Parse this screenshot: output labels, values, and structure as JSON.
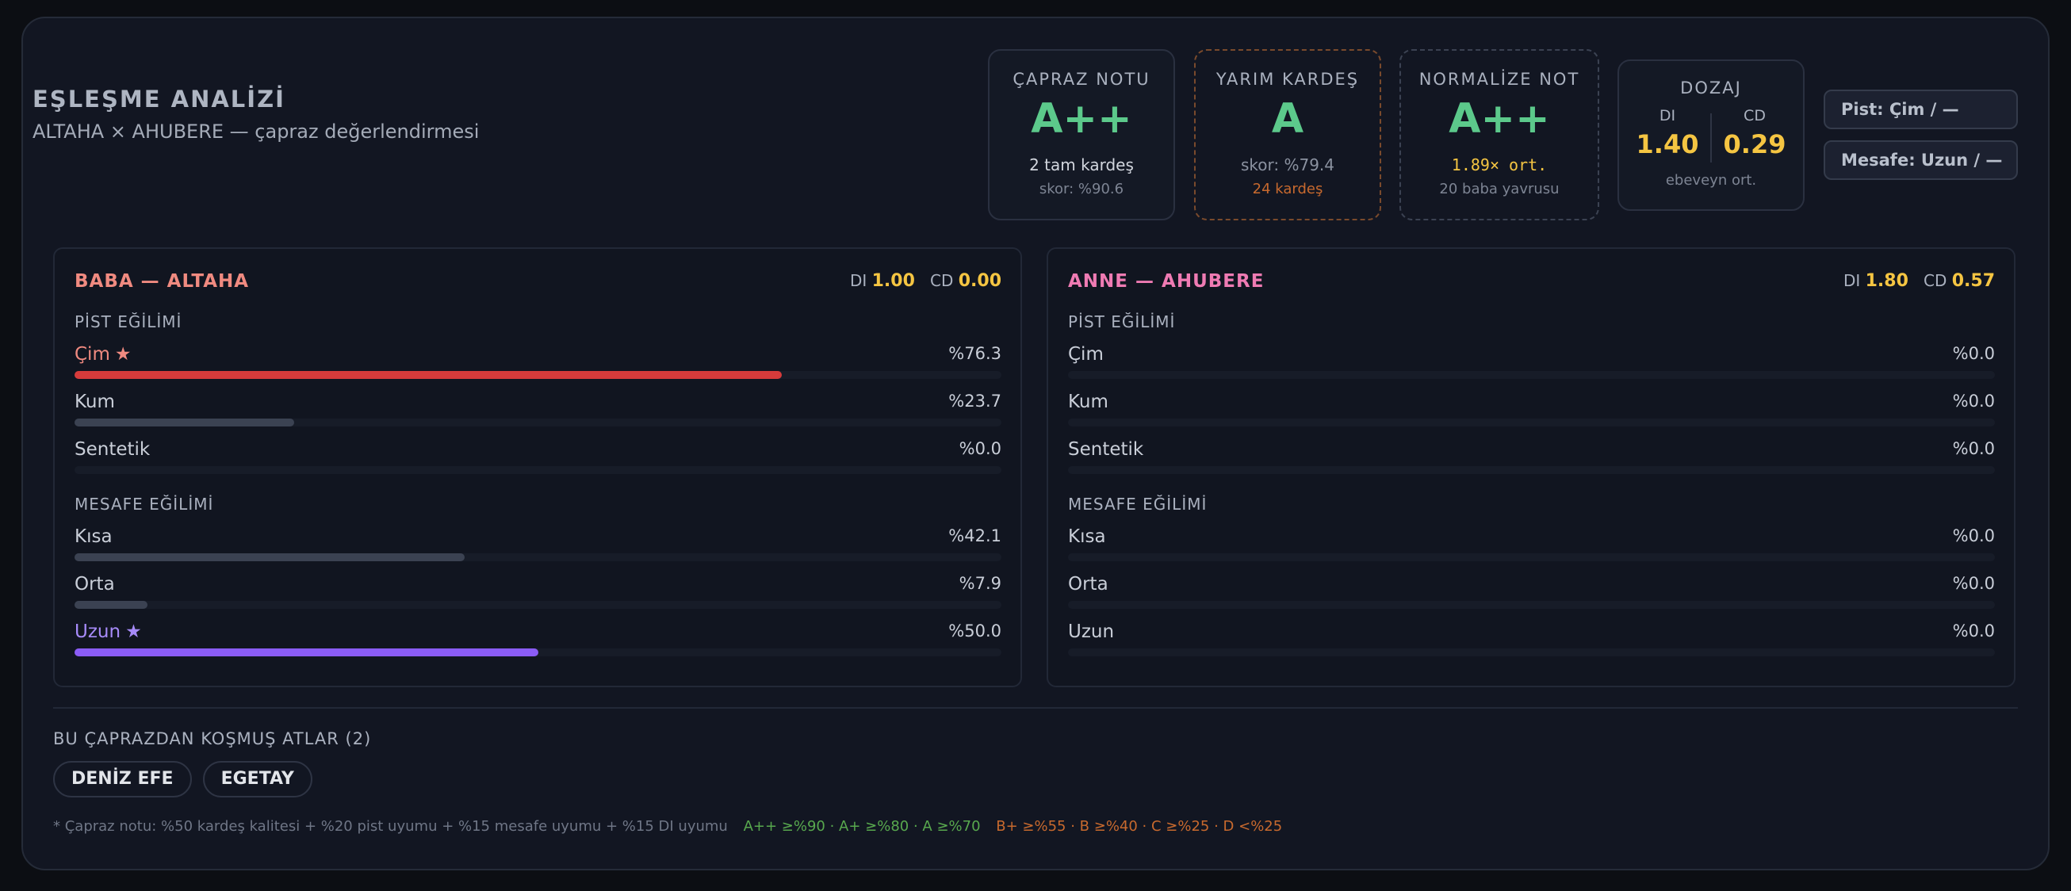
{
  "header": {
    "title": "EŞLEŞME ANALİZİ",
    "subtitle": "ALTAHA × AHUBERE — çapraz değerlendirmesi"
  },
  "stats": {
    "capraz": {
      "label": "ÇAPRAZ NOTU",
      "grade": "A++",
      "line1": "2 tam kardeş",
      "line2": "skor: %90.6"
    },
    "yarim": {
      "label": "YARIM KARDEŞ",
      "grade": "A",
      "line1": "skor: %79.4",
      "line2": "24 kardeş"
    },
    "normalize": {
      "label": "NORMALİZE NOT",
      "grade": "A++",
      "line1": "1.89× ort.",
      "line2": "20 baba yavrusu"
    },
    "dozaj": {
      "label": "DOZAJ",
      "di_label": "DI",
      "di_value": "1.40",
      "cd_label": "CD",
      "cd_value": "0.29",
      "footer": "ebeveyn ort."
    }
  },
  "chips": {
    "pist": "Pist: Çim / —",
    "mesafe": "Mesafe: Uzun / —"
  },
  "colors": {
    "grade_green": "#5cc98b",
    "accent_yellow": "#f5c542",
    "cim_bar": "#d63b3b",
    "uzun_bar": "#8b5cf6",
    "neutral_bar": "#3b4252"
  },
  "sire": {
    "title": "BABA — ALTAHA",
    "di_label": "DI",
    "di_value": "1.00",
    "cd_label": "CD",
    "cd_value": "0.00",
    "surface_title": "PİST EĞİLİMİ",
    "surface": [
      {
        "name": "Çim",
        "star": "★",
        "pct": "%76.3",
        "value": 76.3,
        "highlight": "cim"
      },
      {
        "name": "Kum",
        "star": "",
        "pct": "%23.7",
        "value": 23.7,
        "highlight": ""
      },
      {
        "name": "Sentetik",
        "star": "",
        "pct": "%0.0",
        "value": 0,
        "highlight": ""
      }
    ],
    "distance_title": "MESAFE EĞİLİMİ",
    "distance": [
      {
        "name": "Kısa",
        "star": "",
        "pct": "%42.1",
        "value": 42.1,
        "highlight": ""
      },
      {
        "name": "Orta",
        "star": "",
        "pct": "%7.9",
        "value": 7.9,
        "highlight": ""
      },
      {
        "name": "Uzun",
        "star": "★",
        "pct": "%50.0",
        "value": 50.0,
        "highlight": "uzun"
      }
    ]
  },
  "dam": {
    "title": "ANNE — AHUBERE",
    "di_label": "DI",
    "di_value": "1.80",
    "cd_label": "CD",
    "cd_value": "0.57",
    "surface_title": "PİST EĞİLİMİ",
    "surface": [
      {
        "name": "Çim",
        "star": "",
        "pct": "%0.0",
        "value": 0,
        "highlight": ""
      },
      {
        "name": "Kum",
        "star": "",
        "pct": "%0.0",
        "value": 0,
        "highlight": ""
      },
      {
        "name": "Sentetik",
        "star": "",
        "pct": "%0.0",
        "value": 0,
        "highlight": ""
      }
    ],
    "distance_title": "MESAFE EĞİLİMİ",
    "distance": [
      {
        "name": "Kısa",
        "star": "",
        "pct": "%0.0",
        "value": 0,
        "highlight": ""
      },
      {
        "name": "Orta",
        "star": "",
        "pct": "%0.0",
        "value": 0,
        "highlight": ""
      },
      {
        "name": "Uzun",
        "star": "",
        "pct": "%0.0",
        "value": 0,
        "highlight": ""
      }
    ]
  },
  "horses": {
    "title": "BU ÇAPRAZDAN KOŞMUŞ ATLAR (2)",
    "items": [
      "DENİZ EFE",
      "EGETAY"
    ]
  },
  "footnote": {
    "text": "* Çapraz notu: %50 kardeş kalitesi + %20 pist uyumu + %15 mesafe uyumu + %15 DI uyumu",
    "good": "A++ ≥%90 · A+ ≥%80 · A ≥%70",
    "bad": "B+ ≥%55 · B ≥%40 · C ≥%25 · D <%25"
  }
}
